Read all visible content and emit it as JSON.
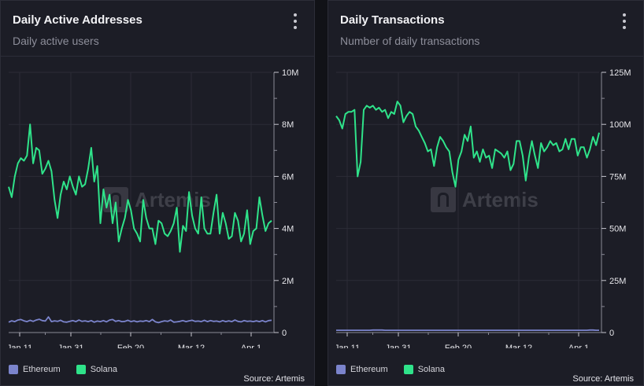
{
  "chart_data": [
    {
      "type": "line",
      "title": "Daily Active Addresses",
      "subtitle": "Daily active users",
      "x_ticks": [
        "Jan 11",
        "Jan 31",
        "Feb 20",
        "Mar 12",
        "Apr 1"
      ],
      "y_ticks": [
        "0",
        "2M",
        "4M",
        "6M",
        "8M",
        "10M"
      ],
      "ylim": [
        0,
        10000000
      ],
      "grid": true,
      "legend_position": "bottom-left",
      "source": "Source: Artemis",
      "watermark": "Artemis",
      "series": [
        {
          "name": "Ethereum",
          "color": "#7b84cc",
          "values": [
            400000,
            450000,
            420000,
            480000,
            500000,
            450000,
            420000,
            470000,
            430000,
            480000,
            510000,
            460000,
            440000,
            600000,
            420000,
            450000,
            430000,
            470000,
            410000,
            400000,
            430000,
            460000,
            420000,
            480000,
            430000,
            450000,
            420000,
            460000,
            400000,
            440000,
            420000,
            460000,
            410000,
            480000,
            500000,
            430000,
            460000,
            420000,
            430000,
            470000,
            420000,
            450000,
            410000,
            440000,
            430000,
            460000,
            420000,
            500000,
            410000,
            380000,
            420000,
            450000,
            430000,
            480000,
            400000,
            410000,
            430000,
            460000,
            420000,
            450000,
            470000,
            430000,
            440000,
            420000,
            470000,
            420000,
            460000,
            430000,
            440000,
            410000,
            460000,
            420000,
            450000,
            420000,
            480000,
            430000,
            410000,
            460000,
            430000,
            440000,
            420000,
            450000,
            420000,
            460000,
            410000,
            460000,
            470000
          ]
        },
        {
          "name": "Solana",
          "color": "#2fe38a",
          "values": [
            5600000,
            5200000,
            6000000,
            6500000,
            6700000,
            6600000,
            6800000,
            8000000,
            6500000,
            7100000,
            7000000,
            6100000,
            6300000,
            6600000,
            6200000,
            5100000,
            4400000,
            5300000,
            5800000,
            5500000,
            6000000,
            5600000,
            5300000,
            6000000,
            5600000,
            5700000,
            6300000,
            7100000,
            5800000,
            6400000,
            4200000,
            5500000,
            4800000,
            5300000,
            4200000,
            5000000,
            3500000,
            4000000,
            4400000,
            5100000,
            4700000,
            4000000,
            3800000,
            3500000,
            5100000,
            4400000,
            4000000,
            4000000,
            3400000,
            4300000,
            4200000,
            3800000,
            3700000,
            3900000,
            4200000,
            4800000,
            3100000,
            4100000,
            3900000,
            5400000,
            4500000,
            4000000,
            3800000,
            5200000,
            4000000,
            3800000,
            3800000,
            4600000,
            5300000,
            3800000,
            4600000,
            4200000,
            3600000,
            3700000,
            4600000,
            4300000,
            3500000,
            3800000,
            4700000,
            3400000,
            3900000,
            4000000,
            5200000,
            4500000,
            3900000,
            4200000,
            4300000
          ]
        }
      ]
    },
    {
      "type": "line",
      "title": "Daily Transactions",
      "subtitle": "Number of daily transactions",
      "x_ticks": [
        "Jan 11",
        "Jan 31",
        "Feb 20",
        "Mar 12",
        "Apr 1"
      ],
      "y_ticks": [
        "0",
        "25M",
        "50M",
        "75M",
        "100M",
        "125M"
      ],
      "ylim": [
        0,
        125000000
      ],
      "grid": true,
      "legend_position": "bottom-left",
      "source": "Source: Artemis",
      "watermark": "Artemis",
      "series": [
        {
          "name": "Ethereum",
          "color": "#7b84cc",
          "values": [
            1100000,
            1100000,
            1100000,
            1100000,
            1100000,
            1100000,
            1100000,
            1100000,
            1100000,
            1100000,
            1100000,
            1100000,
            1200000,
            1200000,
            1200000,
            1200000,
            1100000,
            1100000,
            1100000,
            1100000,
            1100000,
            1100000,
            1100000,
            1100000,
            1100000,
            1100000,
            1100000,
            1100000,
            1100000,
            1100000,
            1100000,
            1100000,
            1100000,
            1100000,
            1100000,
            1100000,
            1100000,
            1100000,
            1100000,
            1100000,
            1100000,
            1100000,
            1100000,
            1100000,
            1100000,
            1100000,
            1100000,
            1100000,
            1100000,
            1100000,
            1100000,
            1100000,
            1100000,
            1100000,
            1100000,
            1100000,
            1100000,
            1100000,
            1100000,
            1100000,
            1100000,
            1100000,
            1100000,
            1100000,
            1100000,
            1100000,
            1100000,
            1100000,
            1100000,
            1100000,
            1100000,
            1100000,
            1100000,
            1100000,
            1100000,
            1100000,
            1100000,
            1100000,
            1100000,
            1100000,
            1100000,
            1100000,
            1100000,
            1200000,
            1200000,
            1100000,
            1100000
          ]
        },
        {
          "name": "Solana",
          "color": "#2fe38a",
          "values": [
            104000000,
            102000000,
            98000000,
            105000000,
            106000000,
            106000000,
            107000000,
            75000000,
            82000000,
            107000000,
            109000000,
            108000000,
            109000000,
            107000000,
            108000000,
            106000000,
            107000000,
            103000000,
            106000000,
            105000000,
            111000000,
            109000000,
            101000000,
            104000000,
            106000000,
            105000000,
            99000000,
            97000000,
            94000000,
            91000000,
            87000000,
            88000000,
            80000000,
            89000000,
            94000000,
            92000000,
            89000000,
            87000000,
            77000000,
            70000000,
            83000000,
            87000000,
            95000000,
            92000000,
            99000000,
            84000000,
            87000000,
            82000000,
            88000000,
            84000000,
            85000000,
            79000000,
            88000000,
            87000000,
            86000000,
            84000000,
            87000000,
            78000000,
            81000000,
            92000000,
            92000000,
            85000000,
            73000000,
            84000000,
            92000000,
            85000000,
            79000000,
            91000000,
            87000000,
            89000000,
            92000000,
            90000000,
            91000000,
            87000000,
            88000000,
            93000000,
            88000000,
            93000000,
            93000000,
            85000000,
            89000000,
            89000000,
            84000000,
            88000000,
            94000000,
            90000000,
            96000000
          ]
        }
      ]
    }
  ]
}
